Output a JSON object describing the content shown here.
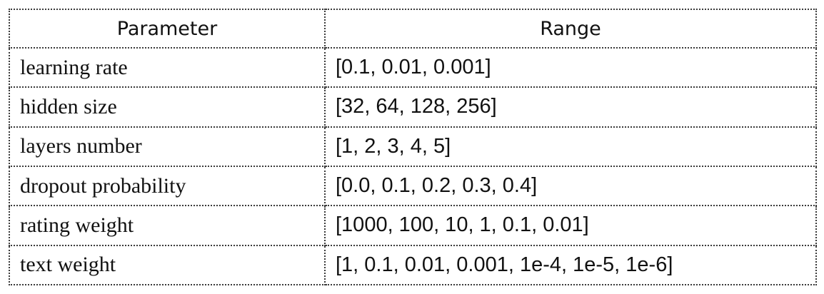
{
  "table": {
    "headers": {
      "parameter": "Parameter",
      "range": "Range"
    },
    "rows": [
      {
        "parameter": "learning rate",
        "range": "[0.1, 0.01, 0.001]"
      },
      {
        "parameter": "hidden size",
        "range": "[32, 64, 128, 256]"
      },
      {
        "parameter": "layers number",
        "range": "[1, 2, 3, 4, 5]"
      },
      {
        "parameter": "dropout probability",
        "range": "[0.0, 0.1, 0.2, 0.3, 0.4]"
      },
      {
        "parameter": "rating weight",
        "range": "[1000, 100, 10, 1, 0.1, 0.01]"
      },
      {
        "parameter": "text weight",
        "range": "[1, 0.1, 0.01, 0.001, 1e-4, 1e-5, 1e-6]"
      }
    ]
  }
}
